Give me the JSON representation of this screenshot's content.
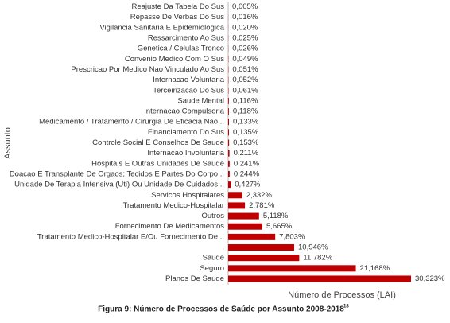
{
  "chart_data": {
    "type": "bar",
    "orientation": "horizontal",
    "color": "#c00000",
    "caption": "Figura 9: Número de Processos de Saúde por Assunto 2008-2018",
    "caption_note": "18",
    "xlabel": "Número de Processos (LAI)",
    "ylabel": "Assunto",
    "categories": [
      "Reajuste Da Tabela Do Sus",
      "Repasse De Verbas Do Sus",
      "Vigilancia Sanitaria E Epidemiologica",
      "Ressarcimento Ao Sus",
      "Genetica / Celulas Tronco",
      "Convenio Medico Com O Sus",
      "Prescricao Por Medico Nao Vinculado Ao Sus",
      "Internacao Voluntaria",
      "Terceirizacao Do Sus",
      "Saude Mental",
      "Internacao Compulsoria",
      "Medicamento / Tratamento / Cirurgia De Eficacia Nao...",
      "Financiamento Do Sus",
      "Controle Social E Conselhos De Saude",
      "Internacao Involuntaria",
      "Hospitais E Outras Unidades De Saude",
      "Doacao E Transplante De Orgaos; Tecidos E Partes Do Corpo...",
      "Unidade De Terapia Intensiva (Uti) Ou Unidade De Cuidados...",
      "Servicos Hospitalares",
      "Tratamento Medico-Hospitalar",
      "Outros",
      "Fornecimento De Medicamentos",
      "Tratamento Medico-Hospitalar E/Ou Fornecimento De...",
      ".",
      "Saude",
      "Seguro",
      "Planos De Saude"
    ],
    "values": [
      0.005,
      0.016,
      0.02,
      0.025,
      0.026,
      0.049,
      0.051,
      0.052,
      0.061,
      0.116,
      0.118,
      0.133,
      0.135,
      0.153,
      0.211,
      0.241,
      0.244,
      0.427,
      2.332,
      2.781,
      5.118,
      5.665,
      7.803,
      10.946,
      11.782,
      21.168,
      30.323
    ],
    "value_labels": [
      "0,005%",
      "0,016%",
      "0,020%",
      "0,025%",
      "0,026%",
      "0,049%",
      "0,051%",
      "0,052%",
      "0,061%",
      "0,116%",
      "0,118%",
      "0,133%",
      "0,135%",
      "0,153%",
      "0,211%",
      "0,241%",
      "0,244%",
      "0,427%",
      "2,332%",
      "2,781%",
      "5,118%",
      "5,665%",
      "7,803%",
      "10,946%",
      "11,782%",
      "21,168%",
      "30,323%"
    ]
  }
}
